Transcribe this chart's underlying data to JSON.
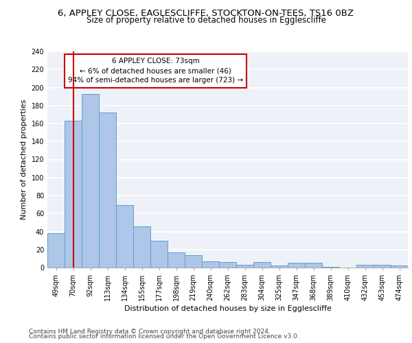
{
  "title_line1": "6, APPLEY CLOSE, EAGLESCLIFFE, STOCKTON-ON-TEES, TS16 0BZ",
  "title_line2": "Size of property relative to detached houses in Egglescliffe",
  "xlabel": "Distribution of detached houses by size in Egglescliffe",
  "ylabel": "Number of detached properties",
  "categories": [
    "49sqm",
    "70sqm",
    "92sqm",
    "113sqm",
    "134sqm",
    "155sqm",
    "177sqm",
    "198sqm",
    "219sqm",
    "240sqm",
    "262sqm",
    "283sqm",
    "304sqm",
    "325sqm",
    "347sqm",
    "368sqm",
    "389sqm",
    "410sqm",
    "432sqm",
    "453sqm",
    "474sqm"
  ],
  "values": [
    38,
    163,
    193,
    172,
    69,
    46,
    30,
    17,
    14,
    7,
    6,
    3,
    6,
    2,
    5,
    5,
    1,
    0,
    3,
    3,
    2
  ],
  "bar_color": "#aec6e8",
  "bar_edge_color": "#5a9fd4",
  "vline_x": 1.0,
  "vline_color": "#cc0000",
  "annotation_title": "6 APPLEY CLOSE: 73sqm",
  "annotation_line2": "← 6% of detached houses are smaller (46)",
  "annotation_line3": "94% of semi-detached houses are larger (723) →",
  "annotation_box_edge": "#cc0000",
  "ylim": [
    0,
    240
  ],
  "yticks": [
    0,
    20,
    40,
    60,
    80,
    100,
    120,
    140,
    160,
    180,
    200,
    220,
    240
  ],
  "footer_line1": "Contains HM Land Registry data © Crown copyright and database right 2024.",
  "footer_line2": "Contains public sector information licensed under the Open Government Licence v3.0.",
  "bg_color": "#eef2f8",
  "grid_color": "#ffffff",
  "title_fontsize": 9.5,
  "subtitle_fontsize": 8.5,
  "axis_label_fontsize": 8,
  "tick_fontsize": 7,
  "annotation_fontsize": 7.5,
  "footer_fontsize": 6.5
}
